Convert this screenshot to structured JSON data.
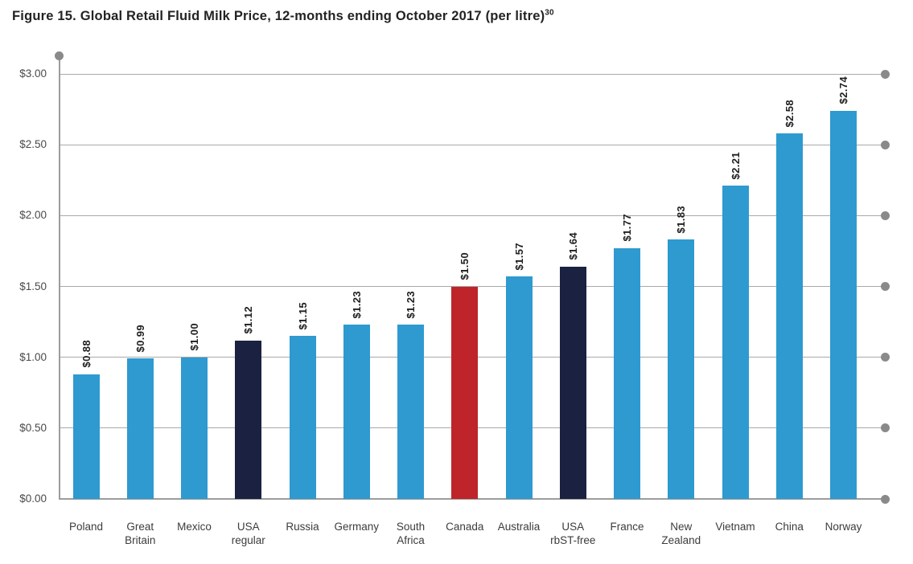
{
  "figure": {
    "title": "Figure 15. Global Retail Fluid Milk Price, 12-months ending October 2017 (per litre)",
    "title_superscript": "30"
  },
  "chart_data": {
    "type": "bar",
    "title": "Figure 15. Global Retail Fluid Milk Price, 12-months ending October 2017 (per litre)",
    "footnote_marker": "30",
    "categories": [
      "Poland",
      "Great\nBritain",
      "Mexico",
      "USA\nregular",
      "Russia",
      "Germany",
      "South\nAfrica",
      "Canada",
      "Australia",
      "USA\nrbST-free",
      "France",
      "New\nZealand",
      "Vietnam",
      "China",
      "Norway"
    ],
    "values": [
      0.88,
      0.99,
      1.0,
      1.12,
      1.15,
      1.23,
      1.23,
      1.5,
      1.57,
      1.64,
      1.77,
      1.83,
      2.21,
      2.58,
      2.74
    ],
    "bar_labels": [
      "$0.88",
      "$0.99",
      "$1.00",
      "$1.12",
      "$1.15",
      "$1.23",
      "$1.23",
      "$1.50",
      "$1.57",
      "$1.64",
      "$1.77",
      "$1.83",
      "$2.21",
      "$2.58",
      "$2.74"
    ],
    "bar_color_roles": [
      "blue",
      "blue",
      "blue",
      "navy",
      "blue",
      "blue",
      "blue",
      "red",
      "blue",
      "navy",
      "blue",
      "blue",
      "blue",
      "blue",
      "blue"
    ],
    "palette": {
      "blue": "#2E9AD0",
      "navy": "#1B2140",
      "red": "#BF242A"
    },
    "xlabel": "",
    "ylabel": "",
    "ylim": [
      0,
      3.0
    ],
    "yticks": [
      0,
      0.5,
      1.0,
      1.5,
      2.0,
      2.5,
      3.0
    ],
    "ytick_labels": [
      "$0.00",
      "$0.50",
      "$1.00",
      "$1.50",
      "$2.00",
      "$2.50",
      "$3.00"
    ],
    "grid": true,
    "legend": false,
    "grid_color": "#A9A9A9",
    "axis_color": "#9C9C9C",
    "dot_color": "#8A8A8A"
  }
}
